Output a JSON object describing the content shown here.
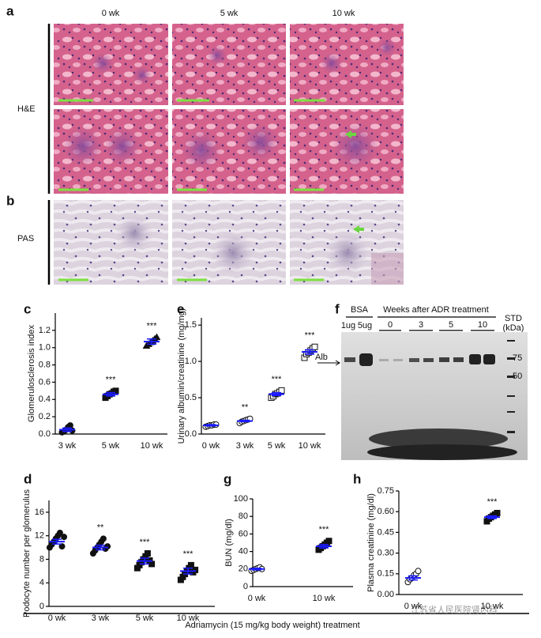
{
  "panel_labels": {
    "a": "a",
    "b": "b",
    "c": "c",
    "d": "d",
    "e": "e",
    "f": "f",
    "g": "g",
    "h": "h"
  },
  "histology": {
    "columns": [
      "0 wk",
      "5 wk",
      "10 wk"
    ],
    "rows": [
      "H&E",
      "PAS"
    ]
  },
  "gel": {
    "groups": [
      "BSA",
      "Weeks after ADR treatment"
    ],
    "bsa_lanes": [
      "1ug",
      "5ug"
    ],
    "week_lanes": [
      "0",
      "3",
      "5",
      "10"
    ],
    "std": "STD",
    "std_unit": "(kDa)",
    "band": "Alb",
    "markers": [
      "75",
      "50"
    ]
  },
  "footer": "Adriamycin (15 mg/kg body weight) treatment",
  "watermark": "江苏省人民医院肾内科",
  "chart_data": [
    {
      "type": "dot",
      "ylabel": "Glomerulosclerosis index",
      "categories": [
        "3 wk",
        "5 wk",
        "10 wk"
      ],
      "markers": [
        "circle",
        "square",
        "triangle"
      ],
      "points": [
        [
          0.02,
          0.03,
          0.05,
          0.08,
          0.1,
          0.04
        ],
        [
          0.42,
          0.44,
          0.46,
          0.47,
          0.49,
          0.5
        ],
        [
          1.02,
          1.04,
          1.06,
          1.08,
          1.1,
          1.12
        ]
      ],
      "values": [
        0.05,
        0.46,
        1.07
      ],
      "errors": [
        0.02,
        0.02,
        0.03
      ],
      "annotations": [
        null,
        "***",
        "***"
      ],
      "color": "#1a1aff",
      "ylim": [
        0,
        1.4
      ],
      "yticks": [
        {
          "value": 0,
          "label": "0.0"
        },
        0.2,
        0.4,
        0.6,
        0.8,
        {
          "value": 1,
          "label": "1.0"
        },
        1.2
      ]
    },
    {
      "type": "dot",
      "ylabel": "Urinary albumin/creatinine (mg/mg)",
      "categories": [
        "0 wk",
        "3 wk",
        "5 wk",
        "10 wk"
      ],
      "markers": [
        "circle-open",
        "circle-open",
        "square-open",
        "square-open"
      ],
      "points": [
        [
          0.1,
          0.11,
          0.12,
          0.12,
          0.13,
          0.13
        ],
        [
          0.15,
          0.17,
          0.18,
          0.19,
          0.2,
          0.21
        ],
        [
          0.5,
          0.52,
          0.55,
          0.56,
          0.58,
          0.6
        ],
        [
          1.05,
          1.1,
          1.12,
          1.15,
          1.18,
          1.2
        ]
      ],
      "values": [
        0.12,
        0.18,
        0.55,
        1.13
      ],
      "errors": [
        0.01,
        0.01,
        0.02,
        0.03
      ],
      "annotations": [
        null,
        "**",
        "***",
        "***"
      ],
      "color": "#1a1aff",
      "ylim": [
        0,
        1.6
      ],
      "yticks": [
        {
          "value": 0,
          "label": "0.0"
        },
        0.5,
        {
          "value": 1,
          "label": "1.0"
        },
        1.5
      ]
    },
    {
      "type": "dot",
      "ylabel": "Podocyte number per glomerulus",
      "categories": [
        "0 wk",
        "3 wk",
        "5 wk",
        "10 wk"
      ],
      "markers": [
        "circle",
        "circle",
        "square",
        "square"
      ],
      "points": [
        [
          10,
          10.5,
          11,
          11.5,
          12,
          12.5,
          10.2,
          11.8
        ],
        [
          9,
          9.5,
          10,
          10.5,
          11,
          11.5,
          9.8,
          10.2
        ],
        [
          6.5,
          7,
          7.5,
          8,
          8.5,
          9,
          7.8,
          7.2
        ],
        [
          4.5,
          5,
          5.5,
          6,
          6.5,
          7,
          5.8,
          6.2
        ]
      ],
      "values": [
        11,
        10,
        7.7,
        6
      ],
      "errors": [
        0.4,
        0.4,
        0.5,
        0.5
      ],
      "annotations": [
        null,
        "**",
        "***",
        "***"
      ],
      "color": "#1a1aff",
      "ylim": [
        0,
        18
      ],
      "yticks": [
        0,
        4,
        8,
        12,
        16
      ]
    },
    {
      "type": "dot",
      "ylabel": "BUN (mg/dl)",
      "categories": [
        "0 wk",
        "10 wk"
      ],
      "markers": [
        "circle-open",
        "square"
      ],
      "points": [
        [
          18,
          19,
          20,
          21,
          22,
          20
        ],
        [
          42,
          44,
          46,
          48,
          50,
          52
        ]
      ],
      "values": [
        20,
        46
      ],
      "errors": [
        1,
        2
      ],
      "annotations": [
        null,
        "***"
      ],
      "color": "#1a1aff",
      "ylim": [
        0,
        100
      ],
      "yticks": [
        0,
        20,
        40,
        60,
        80,
        100
      ]
    },
    {
      "type": "dot",
      "ylabel": "Plasma creatinine (mg/dl)",
      "categories": [
        "0 wk",
        "10 wk"
      ],
      "markers": [
        "circle-open",
        "square"
      ],
      "points": [
        [
          0.09,
          0.11,
          0.12,
          0.14,
          0.15,
          0.17
        ],
        [
          0.53,
          0.55,
          0.56,
          0.57,
          0.58,
          0.59
        ]
      ],
      "values": [
        0.12,
        0.56
      ],
      "errors": [
        0.015,
        0.01
      ],
      "annotations": [
        null,
        "***"
      ],
      "color": "#1a1aff",
      "ylim": [
        0,
        0.75
      ],
      "yticks": [
        {
          "value": 0,
          "label": "0.00"
        },
        0.15,
        {
          "value": 0.3,
          "label": "0.30"
        },
        0.45,
        {
          "value": 0.6,
          "label": "0.60"
        },
        0.75
      ]
    }
  ]
}
